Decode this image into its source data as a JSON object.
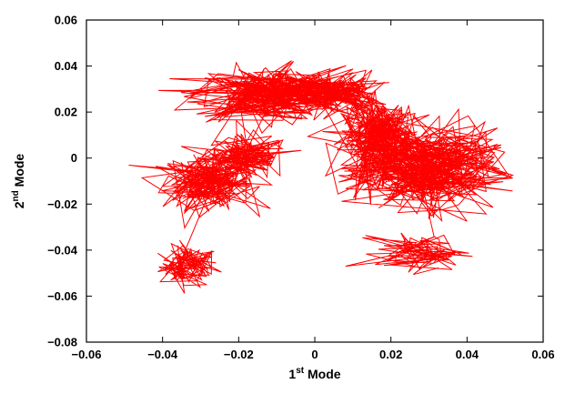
{
  "chart_data": {
    "type": "line",
    "title": "",
    "xlabel": {
      "base": "1",
      "sup": "st",
      "rest": " Mode"
    },
    "ylabel": {
      "base": "2",
      "sup": "nd",
      "rest": " Mode"
    },
    "xlim": [
      -0.06,
      0.06
    ],
    "ylim": [
      -0.08,
      0.06
    ],
    "xticks": [
      -0.06,
      -0.04,
      -0.02,
      0,
      0.02,
      0.04,
      0.06
    ],
    "xtick_labels": [
      "−0.06",
      "−0.04",
      "−0.02",
      "0",
      "0.02",
      "0.04",
      "0.06"
    ],
    "yticks": [
      -0.08,
      -0.06,
      -0.04,
      -0.02,
      0,
      0.02,
      0.04,
      0.06
    ],
    "ytick_labels": [
      "−0.08",
      "−0.06",
      "−0.04",
      "−0.02",
      "0",
      "0.02",
      "0.04",
      "0.06"
    ],
    "grid": false,
    "legend": "none",
    "series": [
      {
        "color": "#ff0000",
        "clusters": [
          {
            "cx": -0.033,
            "cy": -0.047,
            "sx": 0.004,
            "sy": 0.0045,
            "n": 110
          },
          {
            "cx": -0.028,
            "cy": -0.01,
            "sx": 0.006,
            "sy": 0.006,
            "n": 220
          },
          {
            "cx": -0.018,
            "cy": 0.0,
            "sx": 0.006,
            "sy": 0.005,
            "n": 140
          },
          {
            "cx": -0.012,
            "cy": 0.028,
            "sx": 0.01,
            "sy": 0.006,
            "n": 300
          },
          {
            "cx": 0.005,
            "cy": 0.028,
            "sx": 0.006,
            "sy": 0.005,
            "n": 160
          },
          {
            "cx": 0.017,
            "cy": 0.008,
            "sx": 0.005,
            "sy": 0.009,
            "n": 280
          },
          {
            "cx": 0.03,
            "cy": -0.005,
            "sx": 0.009,
            "sy": 0.009,
            "n": 360
          },
          {
            "cx": 0.028,
            "cy": -0.041,
            "sx": 0.006,
            "sy": 0.004,
            "n": 90
          }
        ],
        "range_x": [
          -0.049,
          0.052
        ],
        "range_y": [
          -0.061,
          0.047
        ]
      }
    ]
  }
}
